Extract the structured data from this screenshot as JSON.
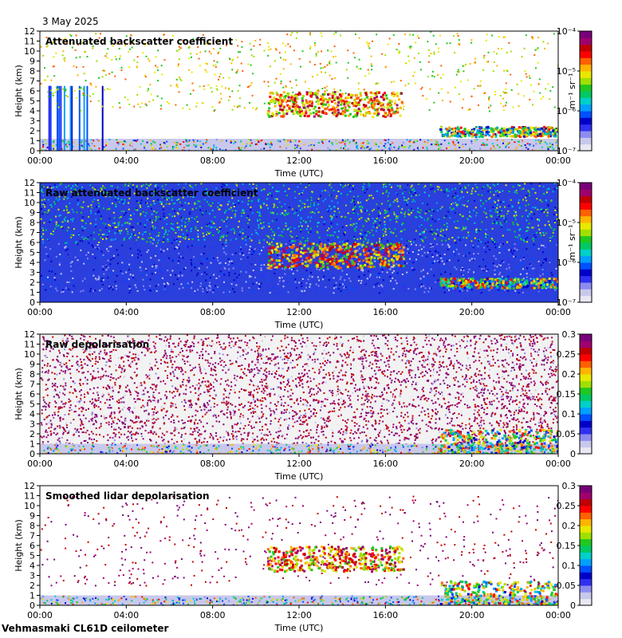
{
  "header": {
    "date": "3 May 2025"
  },
  "footer": {
    "station": "Vehmasmaki CL61D ceilometer"
  },
  "colorbar": {
    "colors": [
      "#e8e8f4",
      "#c8c8ec",
      "#8c8cf0",
      "#3030f0",
      "#0000c8",
      "#0050ff",
      "#00a0ff",
      "#00d0c8",
      "#00c864",
      "#20c820",
      "#a0e000",
      "#e8e800",
      "#ffb400",
      "#ff6000",
      "#ff0000",
      "#c00000",
      "#a0006e",
      "#780078"
    ]
  },
  "chart_data": [
    {
      "type": "heatmap",
      "title": "Attenuated backscatter coefficient",
      "xlabel": "Time (UTC)",
      "ylabel": "Height (km)",
      "xticks": [
        "00:00",
        "04:00",
        "08:00",
        "12:00",
        "16:00",
        "20:00",
        "00:00"
      ],
      "yticks": [
        "0",
        "1",
        "2",
        "3",
        "4",
        "5",
        "6",
        "7",
        "8",
        "9",
        "10",
        "11",
        "12"
      ],
      "ylim": [
        0,
        12
      ],
      "colorbar": {
        "scale": "log",
        "unit_label": "m⁻¹ sr⁻¹",
        "ticks": [
          "10⁻⁷",
          "10⁻⁶",
          "10⁻⁵",
          "10⁻⁴"
        ],
        "range": [
          1e-07,
          0.0001
        ]
      },
      "features": [
        {
          "kind": "boundary_layer",
          "time_range_h": [
            0,
            24
          ],
          "height_km": [
            0,
            1.2
          ]
        },
        {
          "kind": "precipitation_streaks",
          "time_range_h": [
            0.2,
            3
          ],
          "height_km": [
            0,
            6.5
          ]
        },
        {
          "kind": "mid_level_cloud",
          "time_range_h": [
            10.5,
            16.8
          ],
          "height_km": [
            3.5,
            6
          ]
        },
        {
          "kind": "low_cloud",
          "time_range_h": [
            18.5,
            24
          ],
          "height_km": [
            1.5,
            2.5
          ]
        }
      ]
    },
    {
      "type": "heatmap",
      "title": "Raw attenuated backscatter coefficient",
      "xlabel": "Time (UTC)",
      "ylabel": "Height (km)",
      "xticks": [
        "00:00",
        "04:00",
        "08:00",
        "12:00",
        "16:00",
        "20:00",
        "00:00"
      ],
      "yticks": [
        "0",
        "1",
        "2",
        "3",
        "4",
        "5",
        "6",
        "7",
        "8",
        "9",
        "10",
        "11",
        "12"
      ],
      "ylim": [
        0,
        12
      ],
      "colorbar": {
        "scale": "log",
        "unit_label": "m⁻¹ sr⁻¹",
        "ticks": [
          "10⁻⁷",
          "10⁻⁶",
          "10⁻⁵",
          "10⁻⁴"
        ],
        "range": [
          1e-07,
          0.0001
        ]
      },
      "features": [
        {
          "kind": "noise_background",
          "time_range_h": [
            0,
            24
          ],
          "height_km": [
            0,
            12
          ]
        },
        {
          "kind": "mid_level_cloud",
          "time_range_h": [
            10.5,
            16.8
          ],
          "height_km": [
            3.5,
            6
          ]
        },
        {
          "kind": "low_cloud",
          "time_range_h": [
            18.5,
            24
          ],
          "height_km": [
            1.5,
            2.5
          ]
        }
      ]
    },
    {
      "type": "heatmap",
      "title": "Raw depolarisation",
      "xlabel": "Time (UTC)",
      "ylabel": "Height (km)",
      "xticks": [
        "00:00",
        "04:00",
        "08:00",
        "12:00",
        "16:00",
        "20:00",
        "00:00"
      ],
      "yticks": [
        "0",
        "1",
        "2",
        "3",
        "4",
        "5",
        "6",
        "7",
        "8",
        "9",
        "10",
        "11",
        "12"
      ],
      "ylim": [
        0,
        12
      ],
      "colorbar": {
        "scale": "linear",
        "unit_label": "",
        "ticks": [
          "0",
          "0.05",
          "0.1",
          "0.15",
          "0.2",
          "0.25",
          "0.3"
        ],
        "range": [
          0,
          0.3
        ]
      },
      "features": [
        {
          "kind": "noise_background",
          "time_range_h": [
            0,
            24
          ],
          "height_km": [
            1,
            12
          ]
        },
        {
          "kind": "boundary_layer",
          "time_range_h": [
            0,
            24
          ],
          "height_km": [
            0,
            1
          ]
        },
        {
          "kind": "low_cloud",
          "time_range_h": [
            18.5,
            24
          ],
          "height_km": [
            0,
            2.5
          ]
        }
      ]
    },
    {
      "type": "heatmap",
      "title": "Smoothed lidar depolarisation",
      "xlabel": "Time (UTC)",
      "ylabel": "Height (km)",
      "xticks": [
        "00:00",
        "04:00",
        "08:00",
        "12:00",
        "16:00",
        "20:00",
        "00:00"
      ],
      "yticks": [
        "0",
        "1",
        "2",
        "3",
        "4",
        "5",
        "6",
        "7",
        "8",
        "9",
        "10",
        "11",
        "12"
      ],
      "ylim": [
        0,
        12
      ],
      "colorbar": {
        "scale": "linear",
        "unit_label": "",
        "ticks": [
          "0",
          "0.05",
          "0.1",
          "0.15",
          "0.2",
          "0.25",
          "0.3"
        ],
        "range": [
          0,
          0.3
        ]
      },
      "features": [
        {
          "kind": "boundary_layer",
          "time_range_h": [
            0,
            24
          ],
          "height_km": [
            0,
            1
          ]
        },
        {
          "kind": "mid_level_cloud",
          "time_range_h": [
            10.5,
            16.8
          ],
          "height_km": [
            3.5,
            6
          ]
        },
        {
          "kind": "low_cloud",
          "time_range_h": [
            18.5,
            24
          ],
          "height_km": [
            0,
            2.5
          ]
        }
      ]
    }
  ]
}
